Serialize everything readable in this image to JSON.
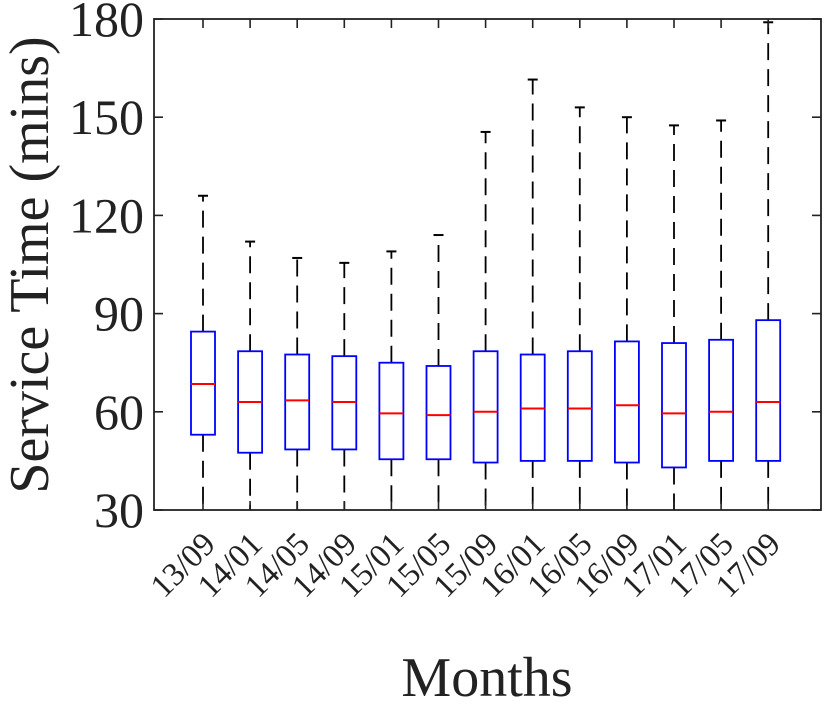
{
  "chart_data": {
    "type": "box",
    "title": "",
    "xlabel": "Months",
    "ylabel": "Service Time (mins)",
    "ylim": [
      30,
      180
    ],
    "yticks": [
      30,
      60,
      90,
      120,
      150,
      180
    ],
    "grid": false,
    "legend": "none",
    "categories": [
      "13/09",
      "14/01",
      "14/05",
      "14/09",
      "15/01",
      "15/05",
      "15/09",
      "16/01",
      "16/05",
      "16/09",
      "17/01",
      "17/05",
      "17/09"
    ],
    "boxes": [
      {
        "whisker_low": 30,
        "q1": 53,
        "median": 68.5,
        "q3": 84.5,
        "whisker_high": 126
      },
      {
        "whisker_low": 30,
        "q1": 47.5,
        "median": 63,
        "q3": 78.5,
        "whisker_high": 112
      },
      {
        "whisker_low": 30,
        "q1": 48.5,
        "median": 63.5,
        "q3": 77.5,
        "whisker_high": 107
      },
      {
        "whisker_low": 30,
        "q1": 48.5,
        "median": 63,
        "q3": 77,
        "whisker_high": 105.5
      },
      {
        "whisker_low": 30,
        "q1": 45.5,
        "median": 59.5,
        "q3": 75,
        "whisker_high": 109
      },
      {
        "whisker_low": 30,
        "q1": 45.5,
        "median": 59,
        "q3": 74,
        "whisker_high": 114
      },
      {
        "whisker_low": 30,
        "q1": 44.5,
        "median": 60,
        "q3": 78.5,
        "whisker_high": 145.5
      },
      {
        "whisker_low": 30,
        "q1": 45,
        "median": 61,
        "q3": 77.5,
        "whisker_high": 161.5
      },
      {
        "whisker_low": 30,
        "q1": 45,
        "median": 61,
        "q3": 78.5,
        "whisker_high": 153
      },
      {
        "whisker_low": 30,
        "q1": 44.5,
        "median": 62,
        "q3": 81.5,
        "whisker_high": 150
      },
      {
        "whisker_low": 30,
        "q1": 43,
        "median": 59.5,
        "q3": 81,
        "whisker_high": 147.5
      },
      {
        "whisker_low": 30,
        "q1": 45,
        "median": 60,
        "q3": 82,
        "whisker_high": 149
      },
      {
        "whisker_low": 30,
        "q1": 45,
        "median": 63,
        "q3": 88,
        "whisker_high": 179
      }
    ],
    "colors": {
      "box": "#0000ff",
      "median": "#ff0000",
      "whisker": "#000000",
      "axis": "#222222"
    }
  }
}
